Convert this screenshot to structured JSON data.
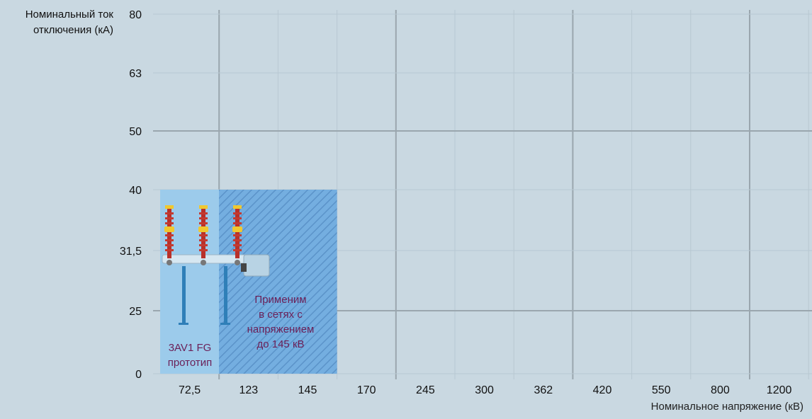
{
  "chart_data": {
    "type": "table",
    "ylabel": [
      "Номинальный ток",
      "отключения (кА)"
    ],
    "xlabel": "Номинальное напряжение (кВ)",
    "x_categories": [
      "72,5",
      "123",
      "145",
      "170",
      "245",
      "300",
      "362",
      "420",
      "550",
      "800",
      "1200"
    ],
    "y_categories": [
      "0",
      "25",
      "31,5",
      "40",
      "50",
      "63",
      "80"
    ],
    "regions": [
      {
        "x_range": [
          "72,5",
          "72,5"
        ],
        "y_range": [
          "0",
          "40"
        ],
        "fill": "#9ccbeb",
        "pattern": "solid",
        "label": [
          "3AV1 FG",
          "прототип"
        ]
      },
      {
        "x_range": [
          "123",
          "145"
        ],
        "y_range": [
          "0",
          "40"
        ],
        "fill": "#6ea8dc",
        "pattern": "hatched",
        "label": [
          "Применим",
          "в сетях с",
          "напряжением",
          "до 145 кВ"
        ]
      }
    ],
    "grid": true
  },
  "colors": {
    "background": "#c9d8e1",
    "grid_major": "#9aa6ae",
    "grid_minor": "#b8c8d2",
    "label_text": "#6b1f57"
  }
}
